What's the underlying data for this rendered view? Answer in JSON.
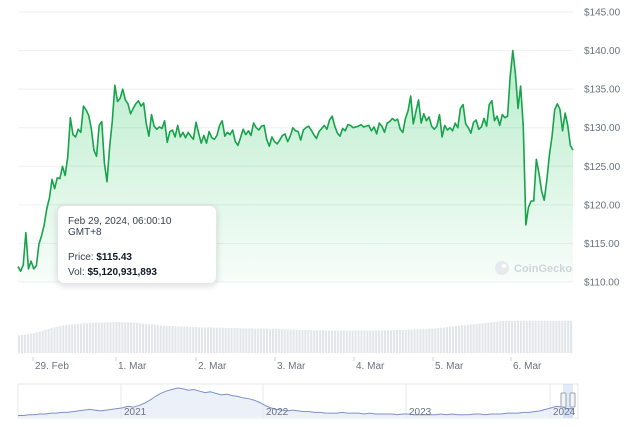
{
  "chart_data": {
    "type": "area",
    "y_axis": {
      "ticks": [
        "$110.00",
        "$115.00",
        "$120.00",
        "$125.00",
        "$130.00",
        "$135.00",
        "$140.00",
        "$145.00"
      ],
      "range": [
        110,
        145
      ]
    },
    "x_axis": {
      "ticks": [
        "29. Feb",
        "1. Mar",
        "2. Mar",
        "3. Mar",
        "4. Mar",
        "5. Mar",
        "6. Mar"
      ]
    },
    "price_series": [
      112.0,
      111.4,
      112.2,
      116.4,
      111.7,
      112.7,
      111.7,
      112.1,
      114.9,
      116.0,
      117.4,
      119.5,
      120.9,
      123.3,
      122.1,
      123.5,
      123.4,
      125.0,
      123.8,
      126.2,
      131.3,
      129.1,
      128.8,
      129.8,
      129.4,
      132.8,
      132.3,
      131.6,
      129.9,
      127.1,
      126.3,
      130.3,
      130.8,
      125.4,
      123.0,
      127.5,
      130.8,
      135.5,
      133.4,
      133.8,
      135.0,
      133.6,
      133.1,
      131.8,
      132.5,
      133.1,
      133.5,
      132.8,
      133.2,
      130.5,
      128.9,
      131.7,
      130.2,
      129.8,
      130.1,
      129.9,
      130.9,
      128.1,
      129.5,
      129.7,
      128.8,
      130.3,
      128.8,
      129.4,
      128.7,
      129.4,
      128.9,
      128.5,
      130.7,
      129.3,
      128.0,
      129.0,
      128.0,
      129.5,
      128.7,
      128.5,
      129.0,
      130.3,
      130.9,
      128.9,
      129.4,
      129.1,
      129.7,
      128.2,
      127.7,
      128.7,
      129.8,
      129.1,
      129.6,
      129.0,
      130.6,
      130.0,
      129.7,
      130.2,
      130.3,
      128.5,
      127.6,
      128.8,
      128.2,
      127.9,
      128.4,
      129.0,
      129.2,
      128.2,
      128.9,
      130.0,
      129.6,
      129.5,
      128.4,
      129.7,
      130.0,
      130.2,
      129.7,
      129.1,
      128.6,
      129.5,
      129.9,
      130.3,
      129.8,
      131.0,
      131.5,
      130.2,
      129.3,
      128.9,
      129.9,
      129.6,
      130.4,
      130.3,
      130.0,
      130.1,
      130.2,
      130.4,
      130.1,
      130.2,
      130.3,
      129.6,
      130.1,
      129.2,
      130.6,
      130.2,
      129.4,
      130.6,
      130.8,
      131.2,
      130.9,
      131.1,
      129.8,
      129.4,
      131.2,
      132.2,
      134.1,
      130.5,
      132.1,
      133.6,
      130.6,
      131.8,
      130.9,
      131.4,
      130.2,
      129.8,
      130.2,
      131.7,
      128.8,
      130.3,
      129.7,
      130.0,
      129.6,
      130.6,
      130.0,
      132.5,
      133.0,
      130.5,
      130.0,
      129.3,
      130.7,
      131.0,
      129.8,
      130.1,
      131.2,
      130.2,
      133.0,
      133.5,
      130.9,
      131.5,
      130.3,
      131.7,
      131.3,
      131.5,
      136.6,
      140.0,
      137.0,
      132.5,
      135.4,
      130.2,
      117.4,
      119.7,
      120.5,
      120.5,
      125.9,
      124.1,
      121.8,
      120.6,
      123.2,
      126.5,
      128.9,
      132.3,
      133.1,
      132.4,
      129.6,
      131.9,
      130.3,
      127.7,
      127.1
    ],
    "volume_series": [
      0.55,
      0.56,
      0.57,
      0.58,
      0.6,
      0.62,
      0.65,
      0.67,
      0.7,
      0.73,
      0.75,
      0.78,
      0.8,
      0.82,
      0.84,
      0.86,
      0.87,
      0.88,
      0.89,
      0.9,
      0.91,
      0.92,
      0.93,
      0.93,
      0.94,
      0.94,
      0.95,
      0.95,
      0.95,
      0.96,
      0.96,
      0.96,
      0.97,
      0.97,
      0.97,
      0.96,
      0.96,
      0.96,
      0.95,
      0.95,
      0.94,
      0.93,
      0.92,
      0.91,
      0.9,
      0.89,
      0.88,
      0.87,
      0.86,
      0.85,
      0.85,
      0.84,
      0.84,
      0.83,
      0.83,
      0.82,
      0.82,
      0.82,
      0.81,
      0.81,
      0.81,
      0.8,
      0.8,
      0.8,
      0.8,
      0.8,
      0.79,
      0.79,
      0.79,
      0.79,
      0.78,
      0.78,
      0.78,
      0.78,
      0.78,
      0.77,
      0.77,
      0.77,
      0.77,
      0.77,
      0.76,
      0.76,
      0.76,
      0.76,
      0.76,
      0.75,
      0.75,
      0.75,
      0.75,
      0.74,
      0.74,
      0.74,
      0.73,
      0.73,
      0.73,
      0.72,
      0.72,
      0.72,
      0.72,
      0.71,
      0.71,
      0.71,
      0.71,
      0.71,
      0.7,
      0.7,
      0.7,
      0.7,
      0.7,
      0.7,
      0.7,
      0.7,
      0.7,
      0.7,
      0.7,
      0.7,
      0.7,
      0.7,
      0.7,
      0.7,
      0.7,
      0.7,
      0.7,
      0.71,
      0.71,
      0.71,
      0.71,
      0.72,
      0.72,
      0.72,
      0.72,
      0.73,
      0.73,
      0.73,
      0.74,
      0.74,
      0.74,
      0.75,
      0.75,
      0.76,
      0.76,
      0.77,
      0.78,
      0.79,
      0.8,
      0.81,
      0.82,
      0.83,
      0.84,
      0.85,
      0.86,
      0.87,
      0.88,
      0.89,
      0.9,
      0.91,
      0.92,
      0.93,
      0.94,
      0.95,
      0.96,
      0.97,
      0.98,
      0.99,
      1.0,
      1.0,
      1.0,
      1.0,
      1.0,
      1.0,
      1.0,
      1.0,
      1.0,
      1.0,
      1.0,
      1.0,
      1.0,
      1.0,
      1.0,
      1.0,
      1.0,
      1.0,
      1.0,
      1.0,
      1.0,
      1.0,
      1.0,
      1.0
    ],
    "navigator": {
      "year_labels": [
        "2021",
        "2022",
        "2023",
        "2024"
      ],
      "series": [
        2,
        2,
        3,
        3,
        4,
        4,
        5,
        5,
        6,
        6,
        7,
        8,
        9,
        10,
        9,
        8,
        9,
        10,
        11,
        12,
        14,
        13,
        15,
        18,
        22,
        27,
        31,
        34,
        36,
        38,
        37,
        35,
        36,
        34,
        32,
        33,
        31,
        29,
        30,
        28,
        27,
        25,
        24,
        22,
        19,
        15,
        12,
        10,
        9,
        8,
        9,
        8,
        7,
        7,
        6,
        6,
        5,
        5,
        5,
        6,
        5,
        5,
        5,
        4,
        5,
        4,
        4,
        4,
        4,
        3,
        4,
        4,
        3,
        3,
        3,
        3,
        3,
        4,
        3,
        4,
        3,
        3,
        3,
        4,
        4,
        3,
        4,
        4,
        4,
        5,
        5,
        5,
        6,
        6,
        7,
        8,
        10,
        12,
        14,
        13,
        11,
        11
      ]
    }
  },
  "tooltip": {
    "date": "Feb 29, 2024, 06:00:10 GMT+8",
    "price_label": "Price:",
    "price_value": "$115.43",
    "vol_label": "Vol:",
    "vol_value": "$5,120,931,893"
  },
  "watermark": {
    "text": "CoinGecko"
  },
  "colors": {
    "line": "#16a34a",
    "area": "#22c55e",
    "volume": "#e2e5e9",
    "navigator_line": "#7b93c9",
    "grid": "#eef0f2",
    "axis_text": "#6b7280"
  }
}
